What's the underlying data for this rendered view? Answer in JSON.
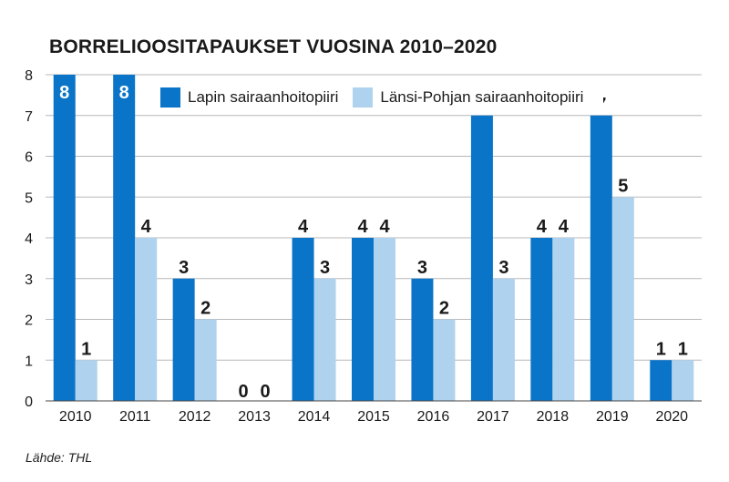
{
  "title": "BORRELIOOSITAPAUKSET VUOSINA 2010–2020",
  "source": "Lähde: THL",
  "legend": {
    "lapin": "Lapin sairaanhoitopiiri",
    "lansi": "Länsi-Pohjan sairaanhoitopiiri"
  },
  "colors": {
    "lapin": "#0a74c8",
    "lansi": "#afd2ee",
    "grid": "#b8b8b8"
  },
  "chart_data": {
    "type": "bar",
    "title": "BORRELIOOSITAPAUKSET VUOSINA 2010–2020",
    "categories": [
      "2010",
      "2011",
      "2012",
      "2013",
      "2014",
      "2015",
      "2016",
      "2017",
      "2018",
      "2019",
      "2020"
    ],
    "series": [
      {
        "name": "Lapin sairaanhoitopiiri",
        "values": [
          8,
          8,
          3,
          0,
          4,
          4,
          3,
          7,
          4,
          7,
          1
        ]
      },
      {
        "name": "Länsi-Pohjan sairaanhoitopiiri",
        "values": [
          1,
          4,
          2,
          0,
          3,
          4,
          2,
          3,
          4,
          5,
          1
        ]
      }
    ],
    "ylim": [
      0,
      8
    ],
    "yticks": [
      0,
      1,
      2,
      3,
      4,
      5,
      6,
      7,
      8
    ],
    "grid": true,
    "legend_position": "top"
  }
}
